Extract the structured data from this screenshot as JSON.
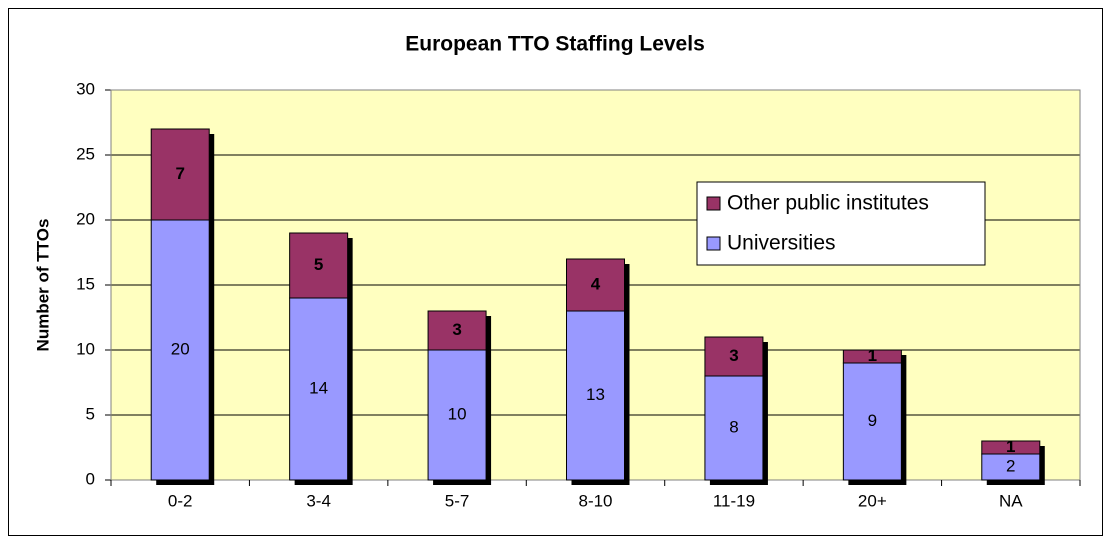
{
  "chart_data": {
    "type": "stacked_bar",
    "title": "European TTO Staffing Levels",
    "y_label": "Number of TTOs",
    "categories": [
      "0-2",
      "3-4",
      "5-7",
      "8-10",
      "11-19",
      "20+",
      "NA"
    ],
    "series": [
      {
        "name": "Universities",
        "color": "#9999ff",
        "values": [
          20,
          14,
          10,
          13,
          8,
          9,
          2
        ]
      },
      {
        "name": "Other public institutes",
        "color": "#993366",
        "values": [
          7,
          5,
          3,
          4,
          3,
          1,
          1
        ]
      }
    ],
    "ylim": [
      0,
      30
    ],
    "yticks": [
      0,
      5,
      10,
      15,
      20,
      25,
      30
    ],
    "grid": true,
    "legend_position": "right",
    "plot_background": "#ffffc0"
  }
}
